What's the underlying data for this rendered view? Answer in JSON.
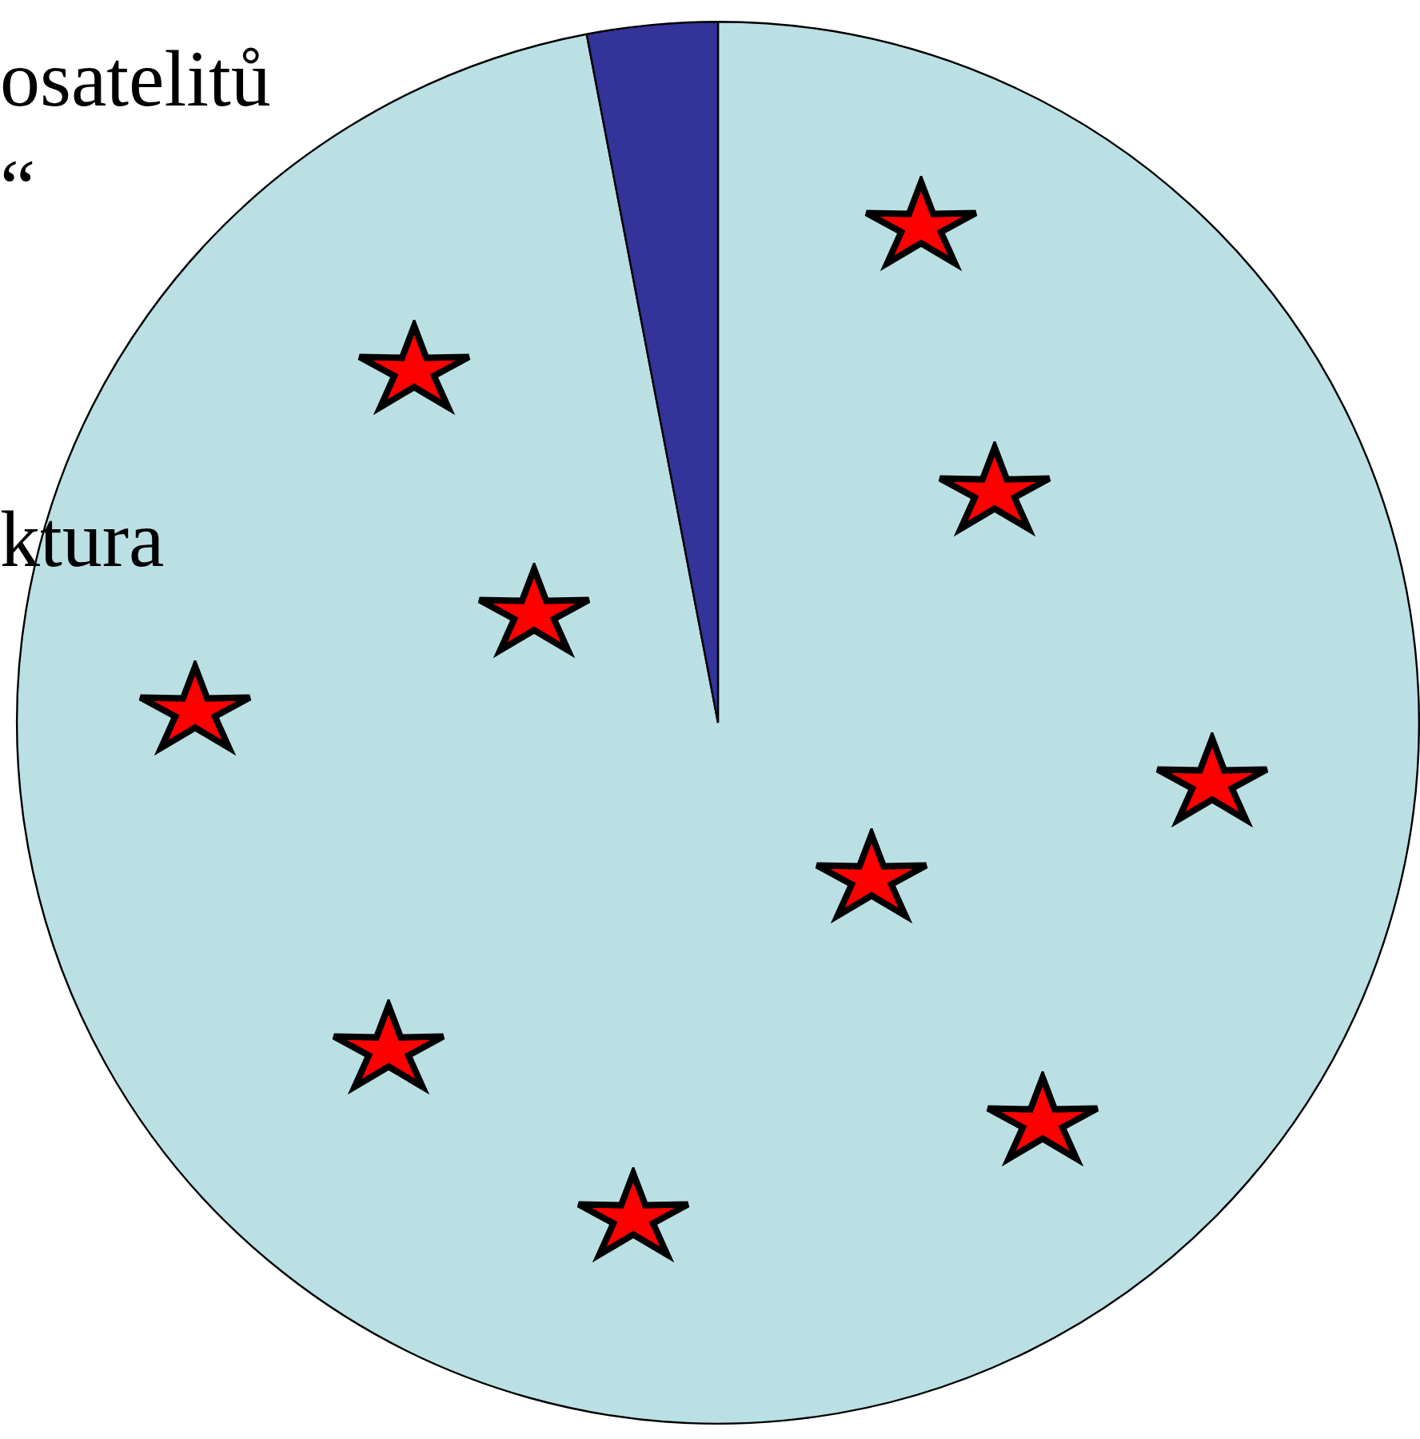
{
  "chart_data": {
    "type": "pie",
    "categories": [
      null,
      null
    ],
    "values": [
      97,
      3
    ],
    "colors": [
      "#bae0e4",
      "#333399"
    ],
    "legend": false,
    "annotations": [
      "osatelitů",
      "“",
      "ktura"
    ]
  }
}
